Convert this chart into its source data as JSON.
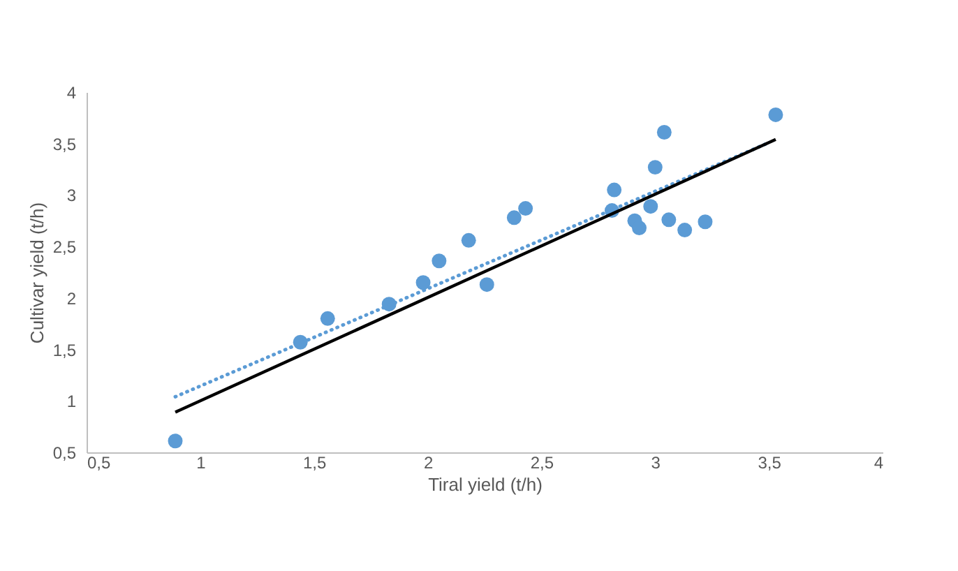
{
  "chart_data": {
    "type": "scatter",
    "xlabel": "Tiral yield (t/h)",
    "ylabel": "Cultivar yield (t/h)",
    "xlim": [
      0.5,
      4
    ],
    "ylim": [
      0.5,
      4
    ],
    "xticks": [
      {
        "value": 0.5,
        "label": "0,5"
      },
      1,
      {
        "value": 1.5,
        "label": "1,5"
      },
      2,
      {
        "value": 2.5,
        "label": "2,5"
      },
      3,
      {
        "value": 3.5,
        "label": "3,5"
      },
      4
    ],
    "yticks": [
      {
        "value": 0.5,
        "label": "0,5"
      },
      1,
      {
        "value": 1.5,
        "label": "1,5"
      },
      2,
      {
        "value": 2.5,
        "label": "2,5"
      },
      3,
      {
        "value": 3.5,
        "label": "3,5"
      },
      4
    ],
    "grid": false,
    "series": [
      {
        "type": "scatter",
        "color": "#5b9bd5",
        "marker": "circle",
        "x": [
          0.89,
          1.44,
          1.56,
          1.83,
          1.98,
          2.05,
          2.18,
          2.26,
          2.38,
          2.43,
          2.82,
          2.81,
          2.91,
          2.93,
          2.98,
          3.0,
          3.04,
          3.06,
          3.13,
          3.22,
          3.53
        ],
        "values": [
          0.61,
          1.57,
          1.8,
          1.94,
          2.15,
          2.36,
          2.56,
          2.13,
          2.78,
          2.87,
          3.05,
          2.85,
          2.75,
          2.68,
          2.89,
          3.27,
          3.61,
          2.76,
          2.66,
          2.74,
          3.78
        ]
      },
      {
        "type": "line",
        "color": "#5b9bd5",
        "line_style": "dotted",
        "x": [
          0.89,
          3.49
        ],
        "values": [
          1.04,
          3.5
        ]
      },
      {
        "type": "line",
        "color": "#000000",
        "line_style": "solid",
        "x": [
          0.89,
          3.53
        ],
        "values": [
          0.89,
          3.54
        ]
      }
    ]
  }
}
